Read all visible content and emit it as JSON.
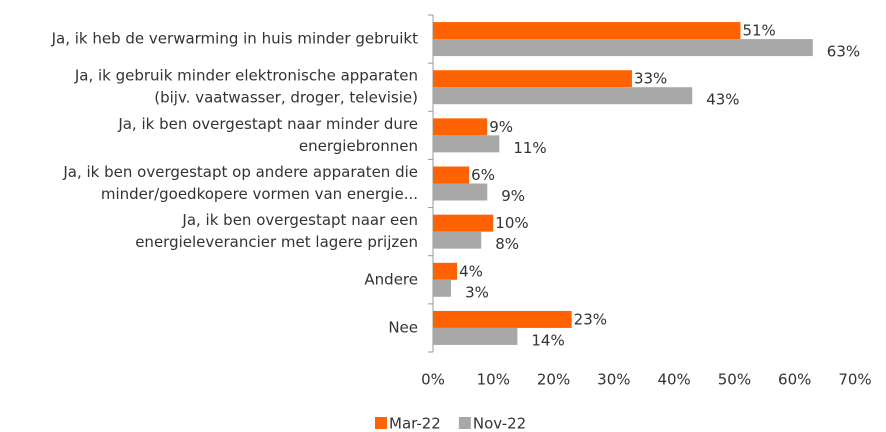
{
  "chart_data": {
    "type": "hbar",
    "categories": [
      [
        "Ja, ik heb de verwarming in huis minder gebruikt"
      ],
      [
        "Ja, ik gebruik minder elektronische apparaten",
        "(bijv. vaatwasser, droger, televisie)"
      ],
      [
        "Ja, ik ben overgestapt naar minder dure",
        "energiebronnen"
      ],
      [
        "Ja, ik ben overgestapt op andere apparaten die",
        "minder/goedkopere vormen van energie..."
      ],
      [
        "Ja, ik ben overgestapt naar een",
        "energieleverancier met lagere prijzen"
      ],
      [
        "Andere"
      ],
      [
        "Nee"
      ]
    ],
    "series": [
      {
        "name": "Mar-22",
        "color": "#ff6200",
        "values": [
          51,
          33,
          9,
          6,
          10,
          4,
          23
        ],
        "value_labels": [
          "51%",
          "33%",
          "9%",
          "6%",
          "10%",
          "4%",
          "23%"
        ]
      },
      {
        "name": "Nov-22",
        "color": "#a8a8a8",
        "values": [
          63,
          43,
          11,
          9,
          8,
          3,
          14
        ],
        "value_labels": [
          "63%",
          "43%",
          "11%",
          "9%",
          "8%",
          "3%",
          "14%"
        ]
      }
    ],
    "xlim": [
      0,
      70
    ],
    "xticks": [
      {
        "value": 0,
        "label": "0%"
      },
      {
        "value": 10,
        "label": "10%"
      },
      {
        "value": 20,
        "label": "20%"
      },
      {
        "value": 30,
        "label": "30%"
      },
      {
        "value": 40,
        "label": "40%"
      },
      {
        "value": 50,
        "label": "50%"
      },
      {
        "value": 60,
        "label": "60%"
      },
      {
        "value": 70,
        "label": "70%"
      }
    ],
    "legend": "bottom"
  }
}
